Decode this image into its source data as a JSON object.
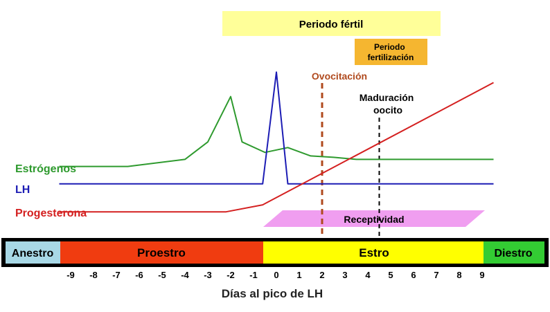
{
  "chart_data": {
    "type": "line",
    "xlabel": "Días al pico de LH",
    "ylabel": "",
    "x_ticks": [
      "-9",
      "-8",
      "-7",
      "-6",
      "-5",
      "-4",
      "-3",
      "-2",
      "-1",
      "0",
      "1",
      "2",
      "3",
      "4",
      "5",
      "6",
      "7",
      "8",
      "9"
    ],
    "xlim": [
      -9.5,
      9.5
    ],
    "series": [
      {
        "name": "Estrógenos",
        "color": "#2e9a2e",
        "x": [
          -9.5,
          -6.5,
          -4,
          -3,
          -2,
          -1.5,
          -0.5,
          0.5,
          1.5,
          2.5,
          3.5,
          9.5
        ],
        "values": [
          0.45,
          0.45,
          0.55,
          0.8,
          1.45,
          0.8,
          0.65,
          0.72,
          0.6,
          0.58,
          0.55,
          0.55
        ]
      },
      {
        "name": "LH",
        "color": "#1c1cb4",
        "x": [
          -9.5,
          -0.6,
          0,
          0.5,
          9.5
        ],
        "values": [
          0.2,
          0.2,
          1.8,
          0.2,
          0.2
        ]
      },
      {
        "name": "Progesterona",
        "color": "#d42020",
        "x": [
          -9.5,
          -2.2,
          -0.6,
          9.5
        ],
        "values": [
          -0.2,
          -0.2,
          -0.1,
          1.65
        ]
      }
    ],
    "annotations": {
      "ovulation": {
        "label": "Ovocitación",
        "x": 2,
        "color": "#b04a1e"
      },
      "maturation": {
        "label": "Maduración oocito",
        "x": 4.5,
        "color": "#000000"
      }
    },
    "bands": {
      "fertile": {
        "label": "Periodo fértil",
        "color": "#ffff99"
      },
      "fertilization": {
        "label": "Periodo fertilización",
        "color": "#f5b630"
      },
      "receptivity": {
        "label": "Receptividad",
        "color": "#f09ef0"
      }
    },
    "phases": [
      {
        "label": "Anestro",
        "color": "#a8d8e6"
      },
      {
        "label": "Proestro",
        "color": "#f03c10"
      },
      {
        "label": "Estro",
        "color": "#ffff00"
      },
      {
        "label": "Diestro",
        "color": "#33cc33"
      }
    ]
  }
}
